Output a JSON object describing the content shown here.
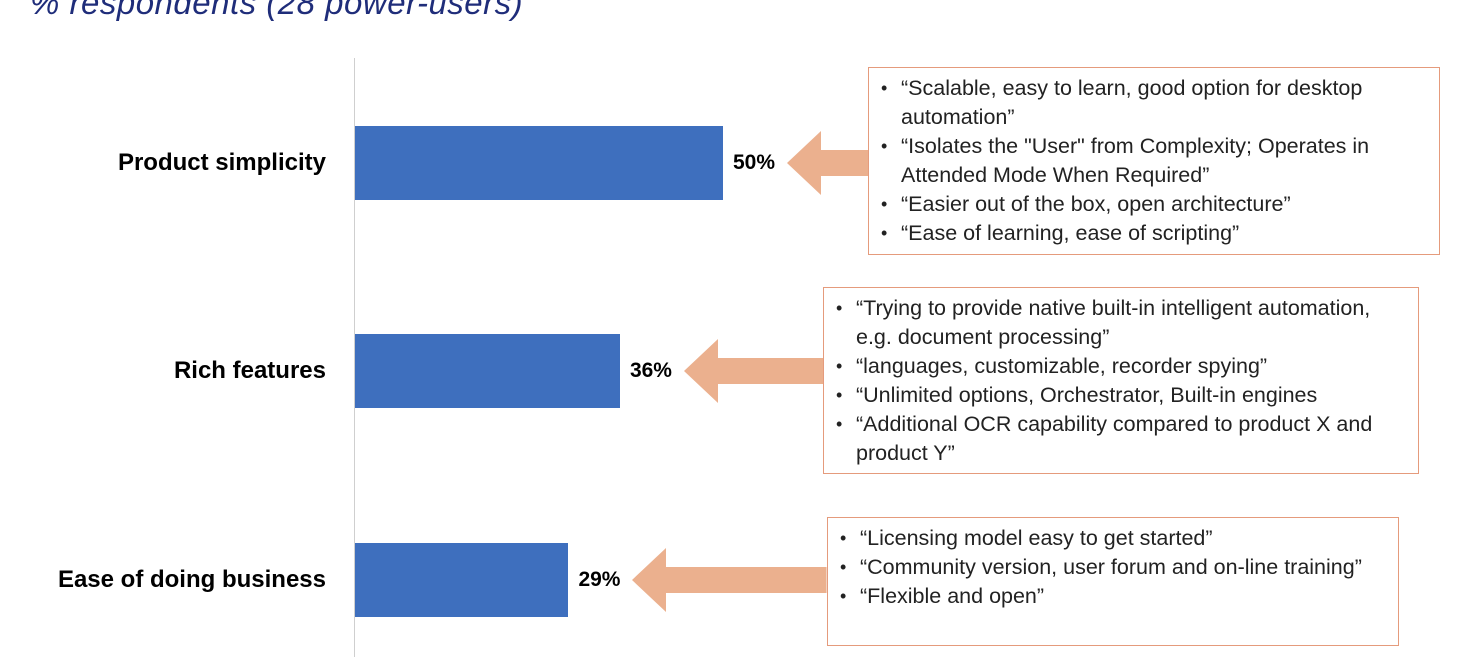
{
  "subtitle": "% respondents (28 power-users)",
  "colors": {
    "bar": "#3e6fbe",
    "arrow": "#ebb08e",
    "box_border": "#e59b7c",
    "subtitle": "#1f2d7a"
  },
  "chart_data": {
    "type": "bar",
    "orientation": "horizontal",
    "categories": [
      "Product simplicity",
      "Rich features",
      "Ease of doing business"
    ],
    "values": [
      50,
      36,
      29
    ],
    "value_labels": [
      "50%",
      "36%",
      "29%"
    ],
    "unit": "%",
    "grid": false,
    "xlim": [
      0,
      100
    ]
  },
  "quotes": [
    {
      "items": [
        "“Scalable, easy to learn, good option for desktop automation”",
        "“Isolates the \"User\" from Complexity; Operates in Attended Mode When Required”",
        "“Easier out of the box, open architecture”",
        "“Ease of learning, ease of scripting”"
      ]
    },
    {
      "items": [
        "“Trying to provide native built-in intelligent automation, e.g. document processing”",
        "“languages, customizable, recorder spying”",
        "“Unlimited options, Orchestrator, Built-in engines",
        "“Additional OCR capability compared to product X and product Y”"
      ]
    },
    {
      "items": [
        "“Licensing model easy to get started”",
        "“Community version, user forum and on-line training”",
        "“Flexible and open”"
      ]
    }
  ]
}
